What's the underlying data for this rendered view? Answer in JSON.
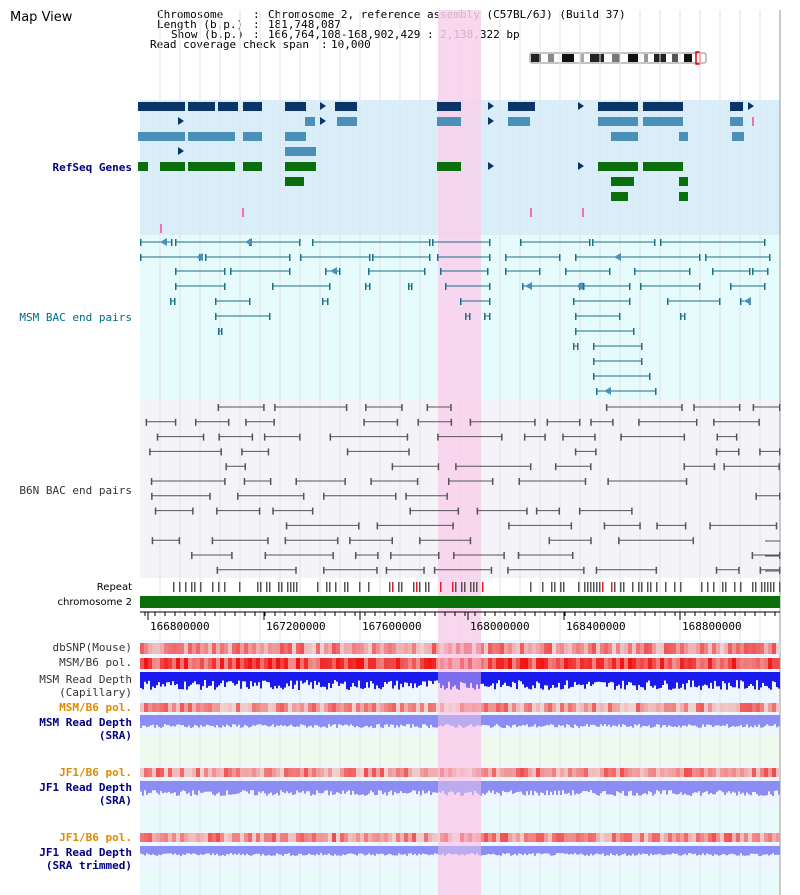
{
  "app": {
    "title": "Map View"
  },
  "header": {
    "chromosome_label": "Chromosome",
    "chromosome_value": "Chromosome 2, reference assembly (C57BL/6J) (Build 37)",
    "length_label": "Length (b.p.)",
    "length_value": "181,748,087",
    "show_label": "Show (b.p.)",
    "show_value": "166,764,108-168,902,429 : 2,138,322 bp",
    "coverage_label": "Read coverage check span",
    "coverage_value": "10,000"
  },
  "tracks": {
    "refseq": "RefSeq Genes",
    "msm_bac": "MSM BAC end pairs",
    "b6n_bac": "B6N BAC end pairs",
    "repeat": "Repeat",
    "chromosome": "chromosome 2",
    "dbsnp": "dbSNP(Mouse)",
    "msm_b6_pol": "MSM/B6 pol.",
    "msm_depth_cap_1": "MSM Read Depth",
    "msm_depth_cap_2": "(Capillary)",
    "msm_b6_pol_2": "MSM/B6 pol.",
    "msm_depth_sra_1": "MSM Read Depth",
    "msm_depth_sra_2": "(SRA)",
    "jf1_b6_pol": "JF1/B6 pol.",
    "jf1_depth_sra_1": "JF1 Read Depth",
    "jf1_depth_sra_2": "(SRA)",
    "jf1_b6_pol_2": "JF1/B6 pol.",
    "jf1_depth_trim_1": "JF1 Read Depth",
    "jf1_depth_trim_2": "(SRA trimmed)"
  },
  "axis": {
    "ticks": [
      "166800000",
      "167200000",
      "167600000",
      "168000000",
      "168400000",
      "168800000"
    ]
  },
  "colors": {
    "refseq_bg": "#d9eef8",
    "msm_bg": "#e6fbfb",
    "b6n_bg": "#f4f4f8",
    "highlight": "#f8d0ec",
    "refseq_dark": "#0b3469",
    "refseq_mid": "#4a90b8",
    "refseq_green": "#0a6e0a",
    "bac_line": "#1e6f8a",
    "b6n_line": "#555555",
    "depth_dark": "#1a1aee",
    "depth_light": "#8c8cf5"
  }
}
